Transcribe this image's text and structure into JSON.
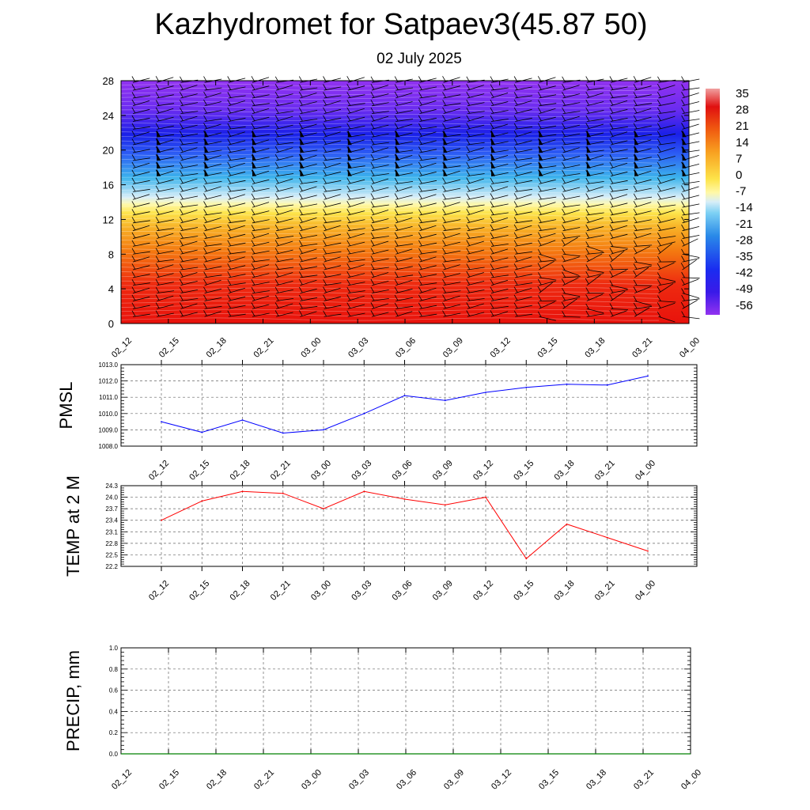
{
  "title": "Kazhydromet for Satpaev3(45.87 50)",
  "subtitle": "02 July 2025",
  "chart_data": [
    {
      "type": "heatmap",
      "name": "temperature-wind-profile",
      "x_ticks": [
        "02_12",
        "02_15",
        "02_18",
        "02_21",
        "03_00",
        "03_03",
        "03_06",
        "03_09",
        "03_12",
        "03_15",
        "03_18",
        "03_21",
        "04_00"
      ],
      "y_ticks": [
        0,
        4,
        8,
        12,
        16,
        20,
        24,
        28
      ],
      "ylim": [
        0,
        28
      ],
      "colorbar_labels": [
        "35",
        "28",
        "21",
        "14",
        "7",
        "0",
        "-7",
        "-14",
        "-21",
        "-28",
        "-35",
        "-42",
        "-49",
        "-56"
      ],
      "colors": {
        "hot": "#e8160e",
        "orange": "#f47a10",
        "yellow": "#fde44a",
        "pale": "#d8eef8",
        "cyan": "#3cb4ec",
        "blue": "#1a2cf0",
        "purple": "#8a32f0"
      }
    },
    {
      "type": "line",
      "name": "pmsl",
      "ylabel": "PMSL",
      "categories": [
        "02_12",
        "02_15",
        "02_18",
        "02_21",
        "03_00",
        "03_03",
        "03_06",
        "03_09",
        "03_12",
        "03_15",
        "03_18",
        "03_21",
        "04_00"
      ],
      "values": [
        1009.5,
        1008.85,
        1009.6,
        1008.8,
        1009.0,
        1010.0,
        1011.1,
        1010.8,
        1011.3,
        1011.6,
        1011.8,
        1011.75,
        1012.3
      ],
      "ylim": [
        1008.0,
        1013.0
      ],
      "y_ticks": [
        "1008.0",
        "1009.0",
        "1010.0",
        "1011.0",
        "1012.0",
        "1013.0"
      ],
      "color": "#0000ff",
      "grid": true
    },
    {
      "type": "line",
      "name": "temp2m",
      "ylabel": "TEMP at 2 M",
      "categories": [
        "02_12",
        "02_15",
        "02_18",
        "02_21",
        "03_00",
        "03_03",
        "03_06",
        "03_09",
        "03_12",
        "03_15",
        "03_18",
        "03_21",
        "04_00"
      ],
      "values": [
        23.4,
        23.9,
        24.15,
        24.1,
        23.7,
        24.15,
        23.95,
        23.8,
        24.0,
        22.4,
        23.3,
        22.95,
        22.6
      ],
      "ylim": [
        22.2,
        24.3
      ],
      "y_ticks": [
        "22.2",
        "22.5",
        "22.8",
        "23.1",
        "23.4",
        "23.7",
        "24.0",
        "24.3"
      ],
      "color": "#ff0000",
      "grid": true
    },
    {
      "type": "line",
      "name": "precip",
      "ylabel": "PRECIP, mm",
      "categories": [
        "02_12",
        "02_15",
        "02_18",
        "02_21",
        "03_00",
        "03_03",
        "03_06",
        "03_09",
        "03_12",
        "03_15",
        "03_18",
        "03_21",
        "04_00"
      ],
      "values": [
        0,
        0,
        0,
        0,
        0,
        0,
        0,
        0,
        0,
        0,
        0,
        0,
        0
      ],
      "ylim": [
        0.0,
        1.0
      ],
      "y_ticks": [
        "0.0",
        "0.2",
        "0.4",
        "0.6",
        "0.8",
        "1.0"
      ],
      "color": "#008000",
      "grid": true
    }
  ]
}
